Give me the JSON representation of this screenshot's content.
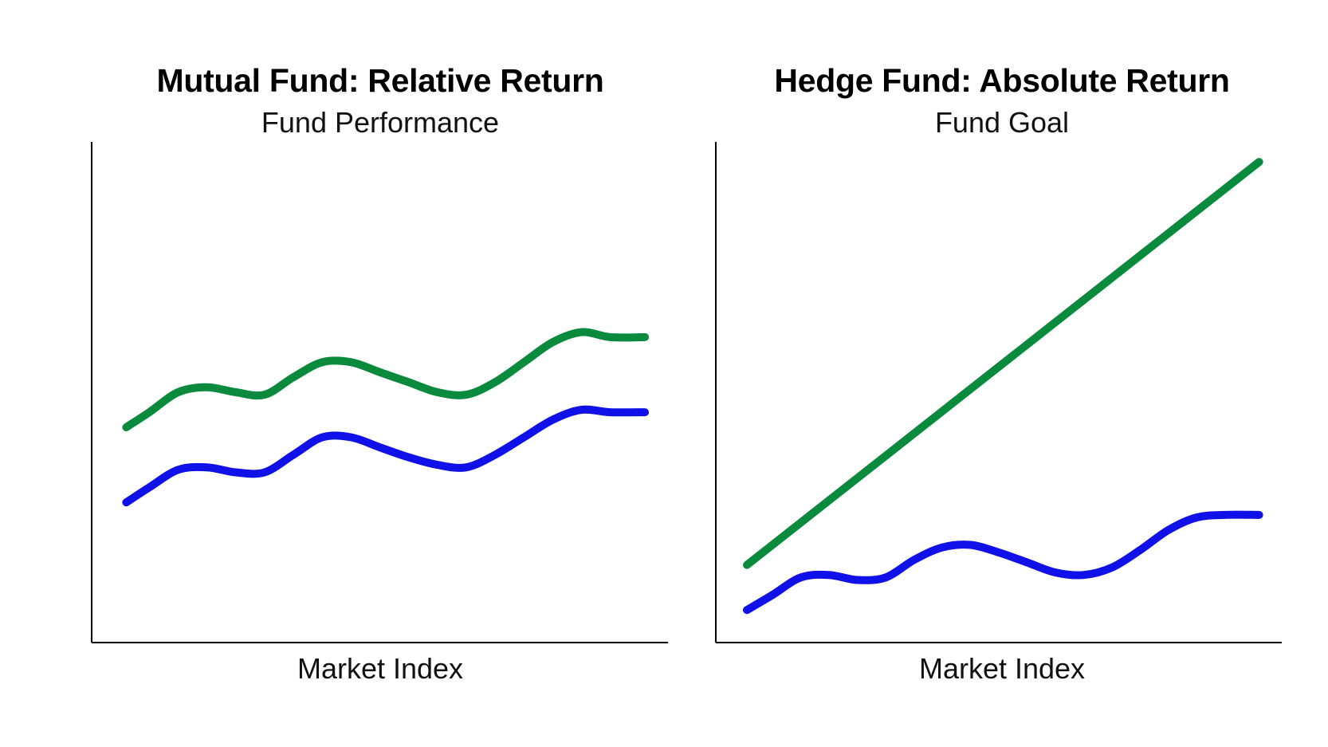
{
  "colors": {
    "fund_line": "#0a8a3c",
    "market_line": "#1010e8",
    "axis": "#000000"
  },
  "chart_data": [
    {
      "type": "line",
      "title": "Mutual Fund: Relative Return",
      "subtitle": "Fund Performance",
      "xlabel": "Market Index",
      "ylabel": "",
      "grid": false,
      "xlim": [
        0,
        10
      ],
      "ylim": [
        0,
        10
      ],
      "series": [
        {
          "color": "#0a8a3c",
          "x": [
            0.6,
            1.0,
            1.5,
            2.0,
            2.5,
            3.0,
            3.5,
            4.0,
            4.5,
            5.0,
            5.5,
            6.0,
            6.5,
            7.0,
            7.5,
            8.0,
            8.5,
            9.0,
            9.6
          ],
          "y": [
            4.3,
            4.6,
            5.0,
            5.1,
            5.0,
            4.95,
            5.3,
            5.6,
            5.6,
            5.4,
            5.2,
            5.0,
            4.95,
            5.2,
            5.6,
            6.0,
            6.2,
            6.1,
            6.1
          ]
        },
        {
          "color": "#1010e8",
          "x": [
            0.6,
            1.0,
            1.5,
            2.0,
            2.5,
            3.0,
            3.5,
            4.0,
            4.5,
            5.0,
            5.5,
            6.0,
            6.5,
            7.0,
            7.5,
            8.0,
            8.5,
            9.0,
            9.6
          ],
          "y": [
            2.8,
            3.1,
            3.45,
            3.5,
            3.4,
            3.4,
            3.75,
            4.1,
            4.1,
            3.9,
            3.7,
            3.55,
            3.5,
            3.75,
            4.1,
            4.45,
            4.65,
            4.6,
            4.6
          ]
        }
      ]
    },
    {
      "type": "line",
      "title": "Hedge Fund: Absolute Return",
      "subtitle": "Fund Goal",
      "xlabel": "Market Index",
      "ylabel": "",
      "grid": false,
      "xlim": [
        0,
        10
      ],
      "ylim": [
        0,
        10
      ],
      "series": [
        {
          "color": "#0a8a3c",
          "x": [
            0.55,
            9.6
          ],
          "y": [
            1.55,
            9.6
          ]
        },
        {
          "color": "#1010e8",
          "x": [
            0.55,
            1.0,
            1.5,
            2.0,
            2.5,
            3.0,
            3.5,
            4.0,
            4.5,
            5.0,
            5.5,
            6.0,
            6.5,
            7.0,
            7.5,
            8.0,
            8.5,
            9.0,
            9.6
          ],
          "y": [
            0.65,
            0.95,
            1.3,
            1.35,
            1.25,
            1.3,
            1.65,
            1.9,
            1.95,
            1.8,
            1.6,
            1.4,
            1.35,
            1.5,
            1.85,
            2.25,
            2.5,
            2.55,
            2.55
          ]
        }
      ]
    }
  ]
}
